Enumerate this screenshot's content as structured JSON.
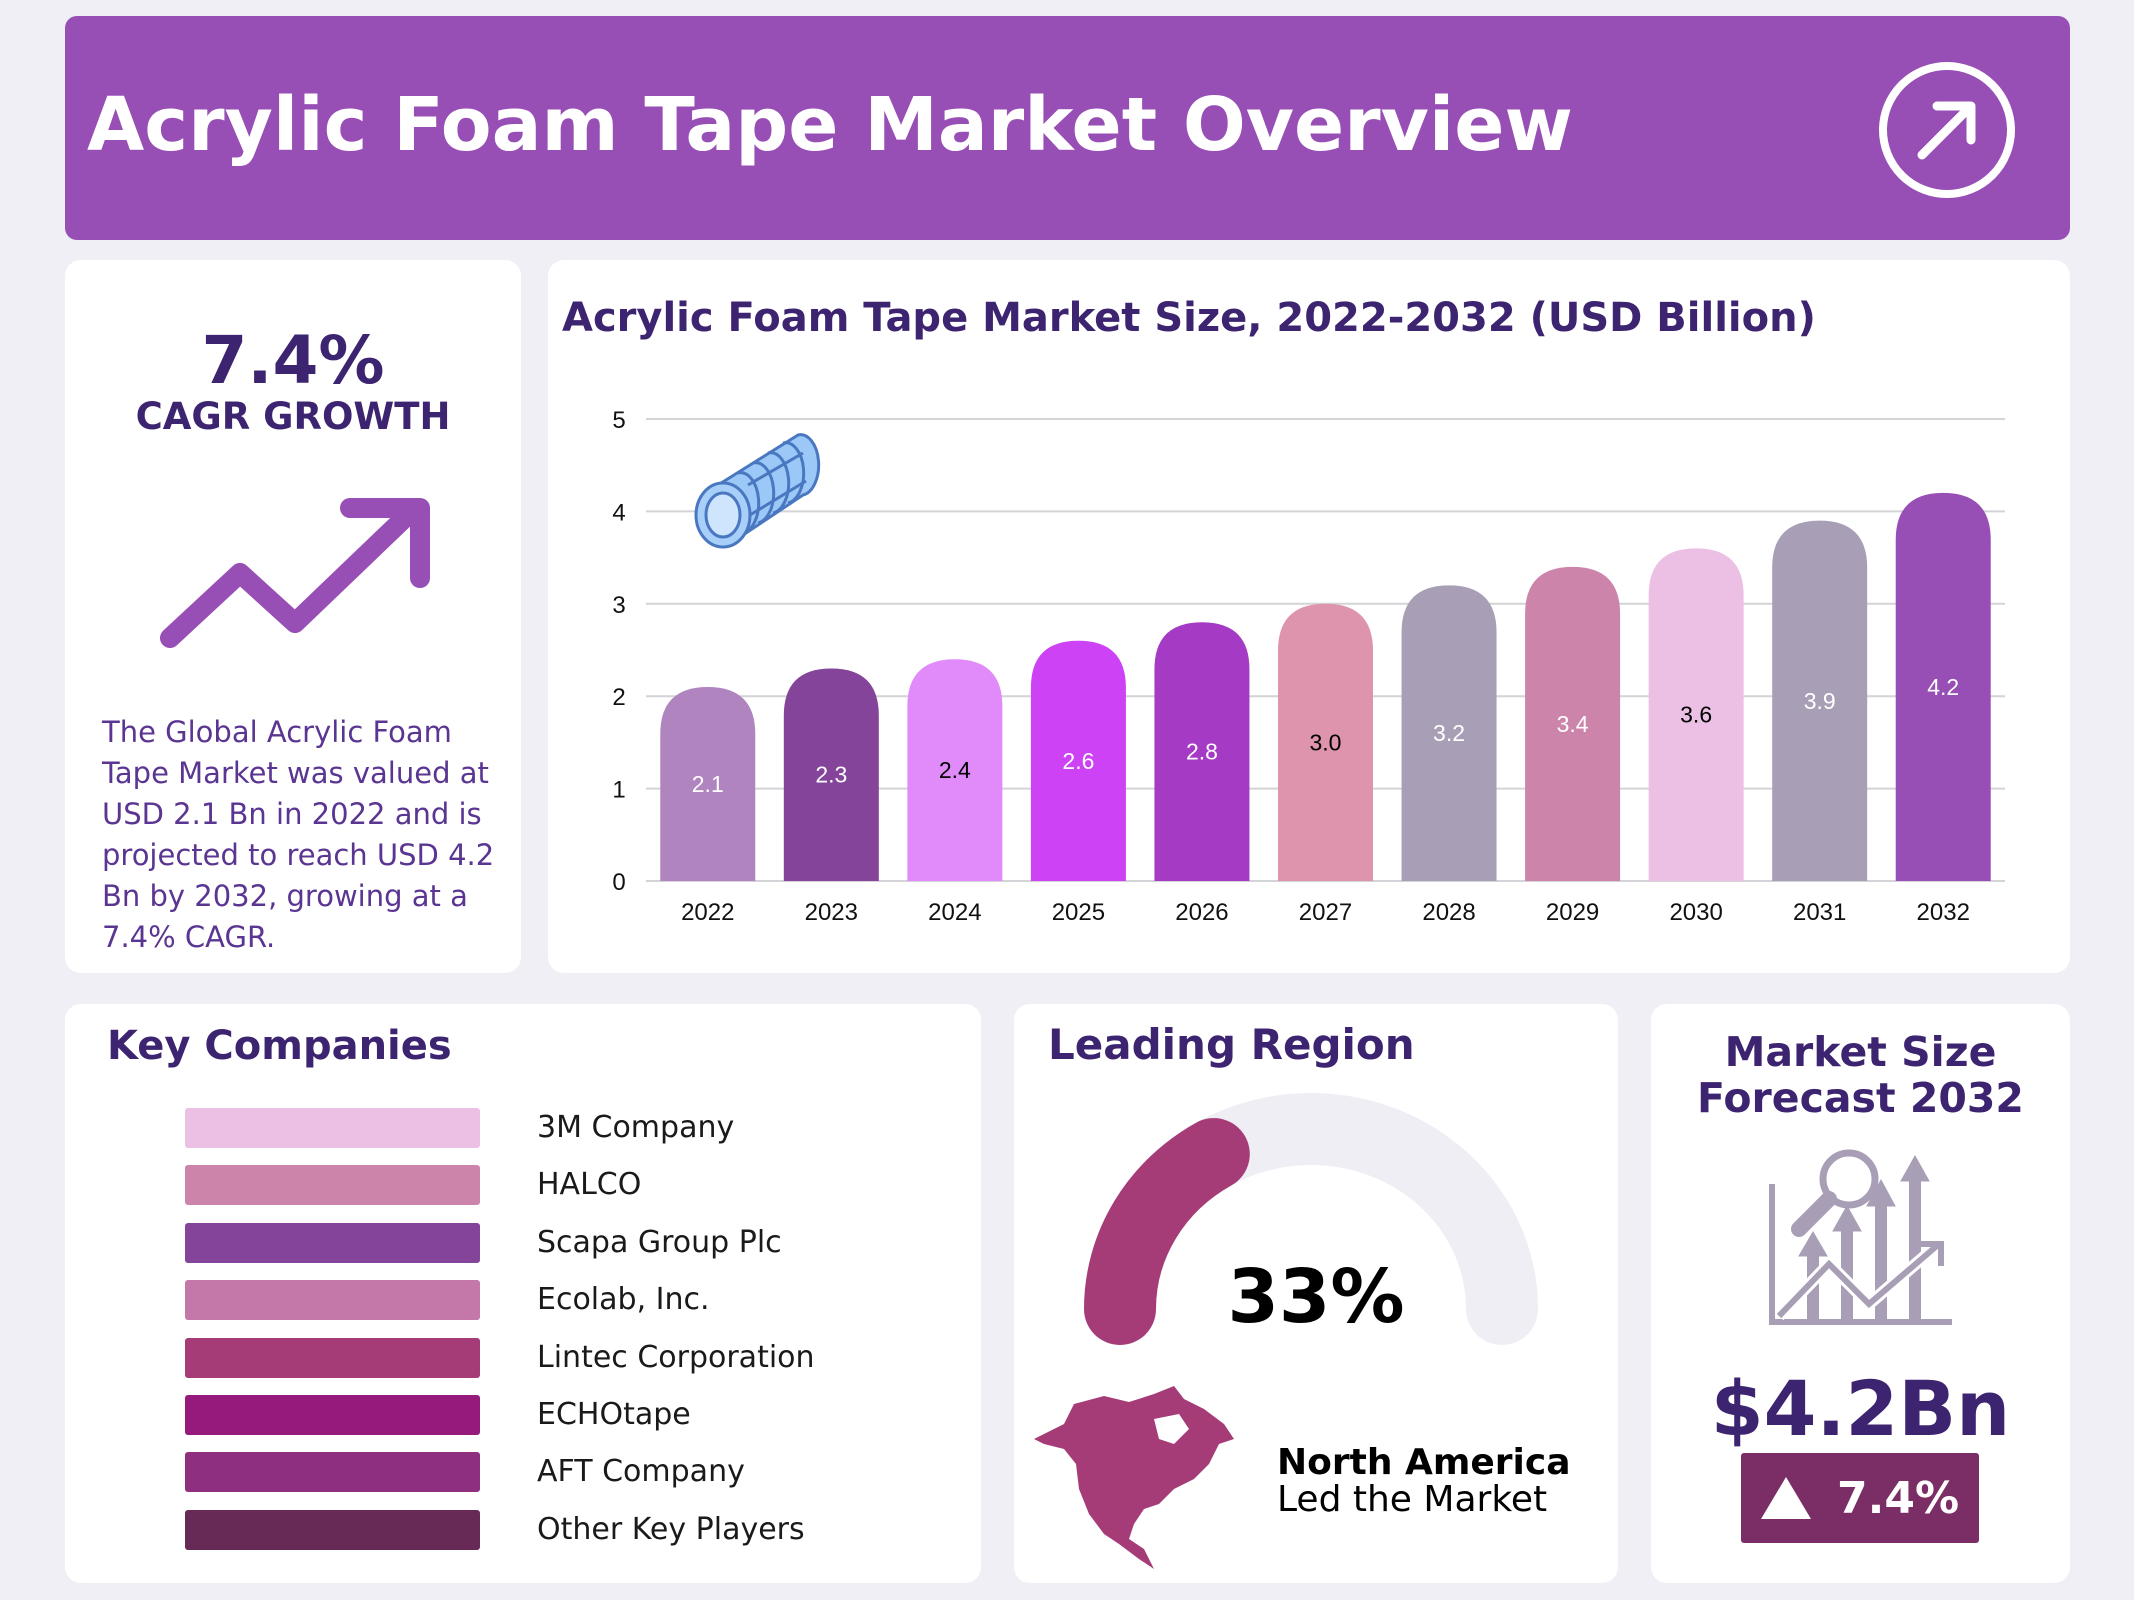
{
  "header": {
    "title": "Acrylic Foam Tape Market Overview",
    "icon": "arrow-up-right-circle-icon"
  },
  "cagr": {
    "value": "7.4%",
    "label": "CAGR GROWTH",
    "icon": "trending-up-arrow-icon",
    "description": "The Global Acrylic Foam Tape Market was valued at USD 2.1 Bn in 2022 and is projected to reach USD 4.2 Bn by 2032, growing at a 7.4% CAGR."
  },
  "chart_data": {
    "type": "bar",
    "title": "Acrylic Foam Tape Market Size, 2022-2032 (USD Billion)",
    "categories": [
      "2022",
      "2023",
      "2024",
      "2025",
      "2026",
      "2027",
      "2028",
      "2029",
      "2030",
      "2031",
      "2032"
    ],
    "values": [
      2.1,
      2.3,
      2.4,
      2.6,
      2.8,
      3.0,
      3.2,
      3.4,
      3.6,
      3.9,
      4.2
    ],
    "value_labels": [
      "2.1",
      "2.3",
      "2.4",
      "2.6",
      "2.8",
      "3.0",
      "3.2",
      "3.4",
      "3.6",
      "3.9",
      "4.2"
    ],
    "colors": [
      "#b084be",
      "#844499",
      "#e08bf9",
      "#cc42f4",
      "#a53ac4",
      "#dd94ac",
      "#a89fb6",
      "#cc84aa",
      "#ecc0e5",
      "#a89fb6",
      "#974eb5"
    ],
    "label_colors": [
      "#ffffff",
      "#ffffff",
      "#000000",
      "#ffffff",
      "#ffffff",
      "#000000",
      "#ffffff",
      "#ffffff",
      "#000000",
      "#ffffff",
      "#ffffff"
    ],
    "ylim": [
      0,
      5
    ],
    "yticks": [
      "0",
      "1",
      "2",
      "3",
      "4",
      "5"
    ],
    "grid": true,
    "xlabel": "",
    "ylabel": "",
    "icon": "foam-tape-roll-icon"
  },
  "companies": {
    "title": "Key Companies",
    "items": [
      {
        "name": "3M Company",
        "color": "#ecc0e5"
      },
      {
        "name": "HALCO",
        "color": "#cc84aa"
      },
      {
        "name": "Scapa Group Plc",
        "color": "#844499"
      },
      {
        "name": "Ecolab, Inc.",
        "color": "#c478aa"
      },
      {
        "name": "Lintec Corporation",
        "color": "#a53c78"
      },
      {
        "name": "ECHOtape",
        "color": "#961a7b"
      },
      {
        "name": "AFT Company",
        "color": "#8e307f"
      },
      {
        "name": "Other Key Players",
        "color": "#672a57"
      }
    ]
  },
  "region": {
    "title": "Leading Region",
    "percent": "33%",
    "share": 0.33,
    "name": "North America",
    "caption": "Led the Market",
    "color": "#a53c78",
    "icon": "north-america-map-icon"
  },
  "forecast": {
    "title_line1": "Market Size",
    "title_line2": "Forecast 2032",
    "value": "$4.2Bn",
    "growth": "7.4%",
    "icon": "growth-chart-magnifier-icon",
    "badge_color": "#7b2d65"
  }
}
